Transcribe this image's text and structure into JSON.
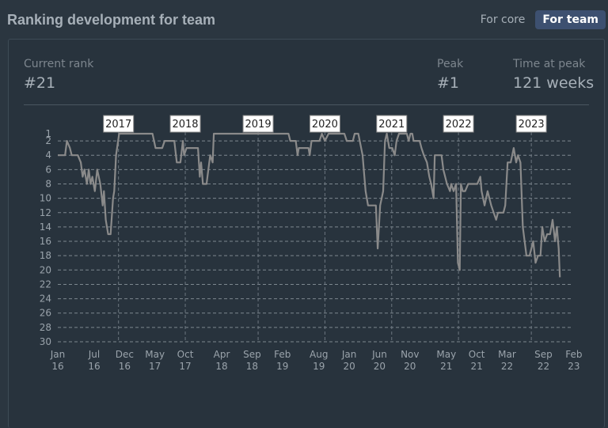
{
  "header": {
    "title": "Ranking development for team",
    "toggle": [
      {
        "label": "For core",
        "active": false
      },
      {
        "label": "For team",
        "active": true
      }
    ]
  },
  "stats": {
    "current_rank": {
      "label": "Current rank",
      "value": "#21"
    },
    "peak": {
      "label": "Peak",
      "value": "#1"
    },
    "time_at_peak": {
      "label": "Time at peak",
      "value": "121 weeks"
    }
  },
  "colors": {
    "line": "#8a8a8a",
    "grid": "#9aa3ab",
    "text": "#9aa3ab"
  },
  "chart_data": {
    "type": "line",
    "ylim": [
      1,
      30
    ],
    "y_inverted": true,
    "y_ticks": [
      1,
      2,
      4,
      6,
      8,
      10,
      12,
      14,
      16,
      18,
      20,
      22,
      24,
      26,
      28,
      30
    ],
    "x_ticks": [
      {
        "t": 0,
        "top": "Jan",
        "bottom": "16"
      },
      {
        "t": 6,
        "top": "Jul",
        "bottom": "16"
      },
      {
        "t": 11,
        "top": "Dec",
        "bottom": "16"
      },
      {
        "t": 16,
        "top": "May",
        "bottom": "17"
      },
      {
        "t": 21,
        "top": "Oct",
        "bottom": "17"
      },
      {
        "t": 27,
        "top": "Apr",
        "bottom": "18"
      },
      {
        "t": 32,
        "top": "Sep",
        "bottom": "18"
      },
      {
        "t": 37,
        "top": "Feb",
        "bottom": "19"
      },
      {
        "t": 43,
        "top": "Aug",
        "bottom": "19"
      },
      {
        "t": 48,
        "top": "Jan",
        "bottom": "20"
      },
      {
        "t": 53,
        "top": "Jun",
        "bottom": "20"
      },
      {
        "t": 58,
        "top": "Nov",
        "bottom": "20"
      },
      {
        "t": 64,
        "top": "May",
        "bottom": "21"
      },
      {
        "t": 69,
        "top": "Oct",
        "bottom": "21"
      },
      {
        "t": 74,
        "top": "Mar",
        "bottom": "22"
      },
      {
        "t": 80,
        "top": "Sep",
        "bottom": "22"
      },
      {
        "t": 85,
        "top": "Feb",
        "bottom": "23"
      }
    ],
    "year_markers": [
      {
        "t": 10,
        "label": "2017"
      },
      {
        "t": 21,
        "label": "2018"
      },
      {
        "t": 33,
        "label": "2019"
      },
      {
        "t": 44,
        "label": "2020"
      },
      {
        "t": 55,
        "label": "2021"
      },
      {
        "t": 66,
        "label": "2022"
      },
      {
        "t": 78,
        "label": "2023"
      }
    ],
    "x_span": [
      0,
      84.5
    ],
    "points": [
      [
        0,
        4
      ],
      [
        1.2,
        4
      ],
      [
        1.5,
        2
      ],
      [
        2,
        3
      ],
      [
        2.3,
        4
      ],
      [
        3,
        4
      ],
      [
        3.3,
        4
      ],
      [
        3.8,
        5
      ],
      [
        4.1,
        7
      ],
      [
        4.4,
        6
      ],
      [
        4.8,
        8
      ],
      [
        5.1,
        6
      ],
      [
        5.4,
        8
      ],
      [
        5.7,
        7
      ],
      [
        6.1,
        9
      ],
      [
        6.5,
        6
      ],
      [
        7,
        8
      ],
      [
        7.4,
        11
      ],
      [
        7.6,
        9
      ],
      [
        7.9,
        13
      ],
      [
        8.3,
        15
      ],
      [
        8.7,
        15
      ],
      [
        9.1,
        10
      ],
      [
        9.3,
        9
      ],
      [
        9.6,
        4
      ],
      [
        10.1,
        1
      ],
      [
        15.6,
        1
      ],
      [
        16.1,
        3
      ],
      [
        17.2,
        3
      ],
      [
        17.6,
        2
      ],
      [
        18.1,
        2
      ],
      [
        19.2,
        2
      ],
      [
        19.6,
        5
      ],
      [
        20.2,
        5
      ],
      [
        20.6,
        2
      ],
      [
        20.8,
        4
      ],
      [
        21.2,
        3
      ],
      [
        23.1,
        3
      ],
      [
        23.4,
        7
      ],
      [
        23.6,
        5
      ],
      [
        23.9,
        8
      ],
      [
        24.5,
        8
      ],
      [
        25.1,
        4
      ],
      [
        25.5,
        5
      ],
      [
        25.7,
        1
      ],
      [
        38,
        1
      ],
      [
        38.3,
        2
      ],
      [
        39.2,
        2
      ],
      [
        39.5,
        4
      ],
      [
        39.7,
        3
      ],
      [
        41.3,
        3
      ],
      [
        41.5,
        4
      ],
      [
        41.8,
        2
      ],
      [
        43.1,
        2
      ],
      [
        43.5,
        1
      ],
      [
        44,
        2
      ],
      [
        44.6,
        1
      ],
      [
        47.2,
        1
      ],
      [
        47.6,
        2
      ],
      [
        48.6,
        2
      ],
      [
        48.9,
        1
      ],
      [
        49.5,
        1
      ],
      [
        50.2,
        4
      ],
      [
        50.7,
        9
      ],
      [
        51.1,
        11
      ],
      [
        52.4,
        11
      ],
      [
        52.7,
        17
      ],
      [
        53.1,
        11
      ],
      [
        53.6,
        9
      ],
      [
        53.9,
        2
      ],
      [
        54.2,
        1
      ],
      [
        54.6,
        3
      ],
      [
        55.1,
        3
      ],
      [
        55.5,
        4
      ],
      [
        55.8,
        2
      ],
      [
        56.2,
        1
      ],
      [
        57.5,
        1
      ],
      [
        57.8,
        2
      ],
      [
        58.1,
        1
      ],
      [
        58.4,
        1
      ],
      [
        58.6,
        2
      ],
      [
        59.6,
        2
      ],
      [
        59.9,
        3
      ],
      [
        60.3,
        4
      ],
      [
        60.8,
        5
      ],
      [
        61.2,
        7
      ],
      [
        61.5,
        8
      ],
      [
        61.9,
        10
      ],
      [
        62.1,
        4
      ],
      [
        63.2,
        4
      ],
      [
        63.5,
        6
      ],
      [
        64.1,
        8
      ],
      [
        64.6,
        9
      ],
      [
        64.8,
        8
      ],
      [
        65.2,
        9
      ],
      [
        65.6,
        8
      ],
      [
        65.9,
        19
      ],
      [
        66.2,
        20
      ],
      [
        66.4,
        8
      ],
      [
        66.7,
        9
      ],
      [
        67.1,
        9
      ],
      [
        67.6,
        8
      ],
      [
        69.1,
        8
      ],
      [
        69.6,
        7
      ],
      [
        69.8,
        9
      ],
      [
        70.3,
        11
      ],
      [
        70.8,
        9
      ],
      [
        71.4,
        11
      ],
      [
        71.8,
        12
      ],
      [
        72.2,
        13
      ],
      [
        72.5,
        12
      ],
      [
        73.4,
        12
      ],
      [
        73.7,
        11
      ],
      [
        74.1,
        5
      ],
      [
        74.6,
        5
      ],
      [
        75.1,
        3
      ],
      [
        75.5,
        5
      ],
      [
        75.8,
        4
      ],
      [
        76.2,
        5
      ],
      [
        76.6,
        14
      ],
      [
        76.9,
        16
      ],
      [
        77.2,
        18
      ],
      [
        77.7,
        18
      ],
      [
        78.3,
        16
      ],
      [
        78.7,
        19
      ],
      [
        79.1,
        18
      ],
      [
        79.5,
        18
      ],
      [
        79.8,
        14
      ],
      [
        80.2,
        16
      ],
      [
        80.6,
        15
      ],
      [
        81.1,
        15
      ],
      [
        81.5,
        13
      ],
      [
        81.9,
        16
      ],
      [
        82.2,
        14
      ],
      [
        82.5,
        17
      ],
      [
        82.7,
        21
      ]
    ]
  }
}
